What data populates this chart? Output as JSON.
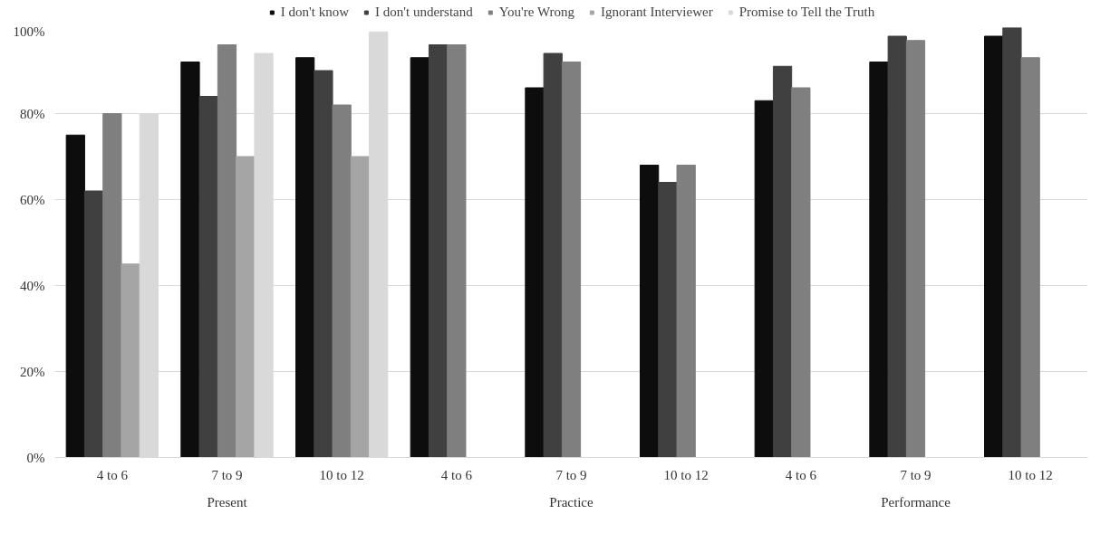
{
  "chart_data": {
    "type": "bar",
    "categories": [
      "4 to 6",
      "7 to 9",
      "10 to 12",
      "4 to 6",
      "7 to 9",
      "10 to 12",
      "4 to 6",
      "7 to 9",
      "10 to 12"
    ],
    "annotations": [
      "Present",
      "Practice",
      "Performance"
    ],
    "series": [
      {
        "name": "I don't know",
        "color": "#0d0d0d",
        "values": [
          75,
          92,
          93,
          93,
          86,
          68,
          83,
          92,
          98
        ]
      },
      {
        "name": "I don't understand",
        "color": "#404040",
        "values": [
          62,
          84,
          90,
          96,
          94,
          64,
          91,
          98,
          100
        ]
      },
      {
        "name": "You're Wrong",
        "color": "#7f7f7f",
        "values": [
          80,
          96,
          82,
          96,
          92,
          68,
          86,
          97,
          93
        ]
      },
      {
        "name": "Ignorant Interviewer",
        "color": "#a5a5a5",
        "values": [
          45,
          70,
          70,
          null,
          null,
          null,
          null,
          null,
          null
        ]
      },
      {
        "name": "Promise to Tell the Truth",
        "color": "#d9d9d9",
        "values": [
          80,
          94,
          99,
          null,
          null,
          null,
          null,
          null,
          null
        ]
      }
    ],
    "ylim": [
      0,
      100
    ],
    "yticks": [
      {
        "value": 0,
        "label": "0%"
      },
      {
        "value": 20,
        "label": "20%"
      },
      {
        "value": 40,
        "label": "40%"
      },
      {
        "value": 60,
        "label": "60%"
      },
      {
        "value": 80,
        "label": "80%"
      },
      {
        "value": 100,
        "label": "100%"
      }
    ],
    "grid": "y",
    "legend": "top"
  }
}
